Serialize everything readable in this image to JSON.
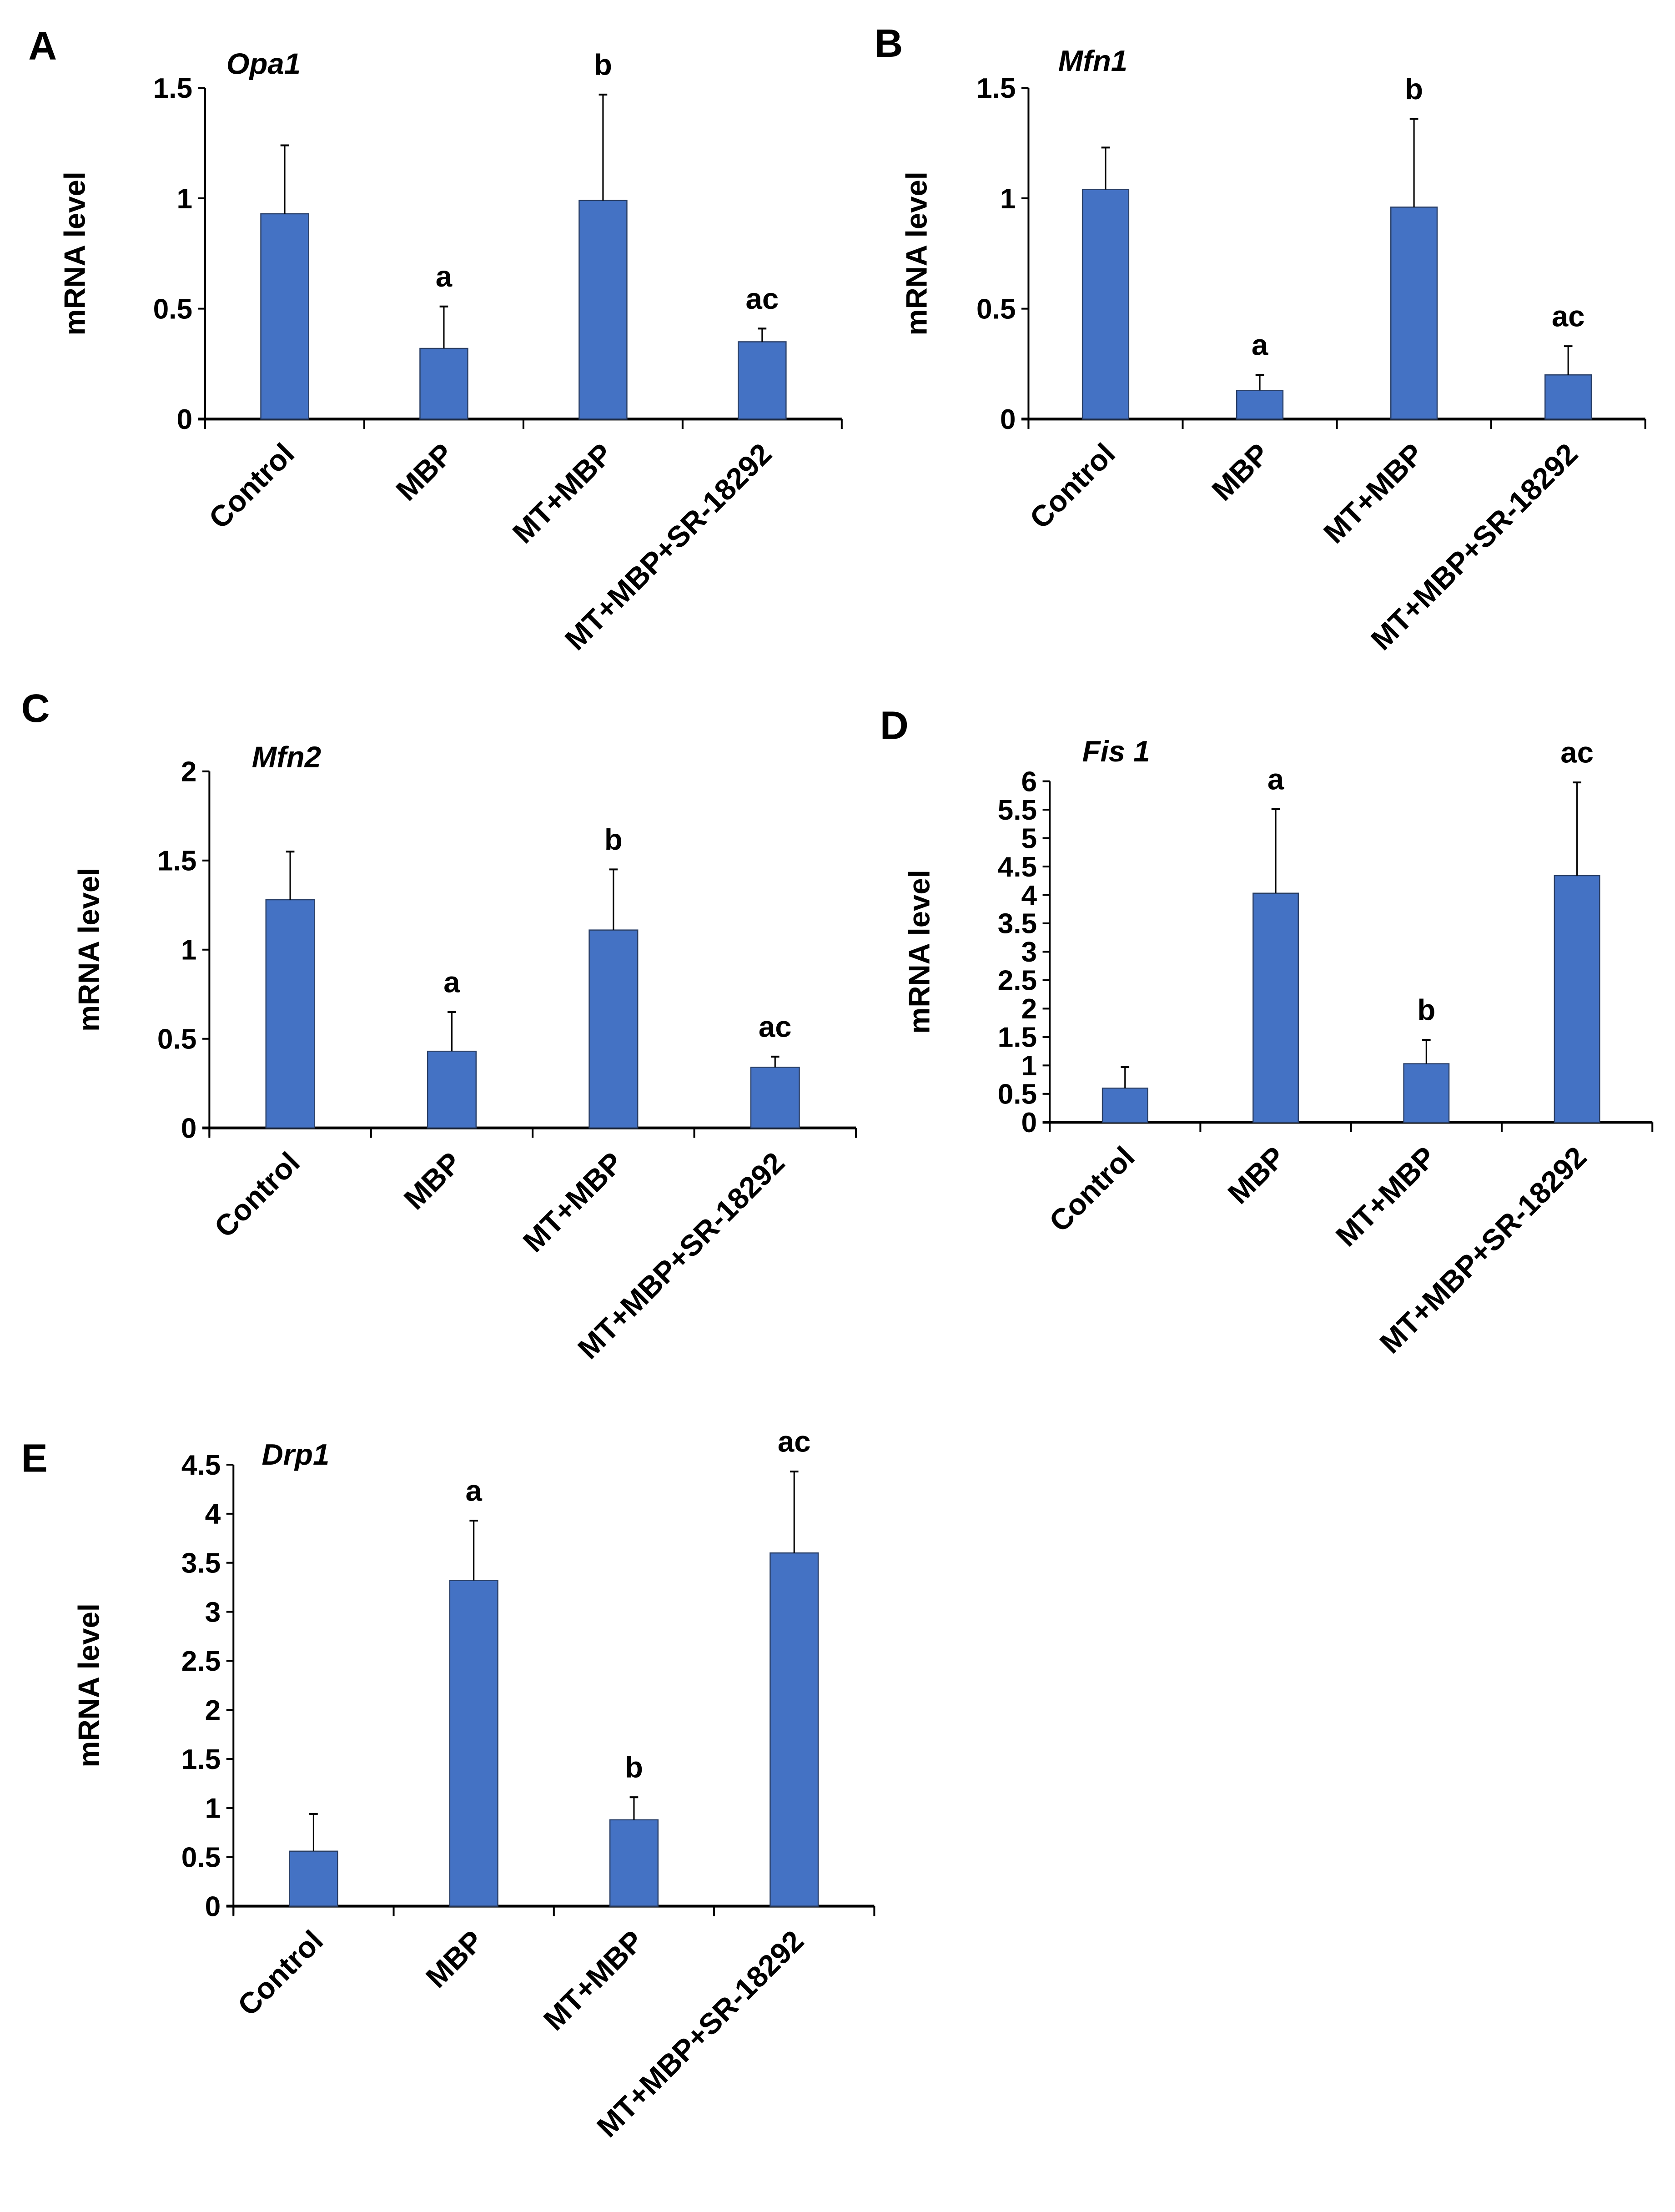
{
  "chart_data": [
    {
      "panel": "A",
      "type": "bar",
      "title": "Opa1",
      "ylabel": "mRNA level",
      "xlabel": "",
      "categories": [
        "Control",
        "MBP",
        "MT+MBP",
        "MT+MBP+SR-18292"
      ],
      "values": [
        0.93,
        0.32,
        0.99,
        0.35
      ],
      "errors": [
        0.31,
        0.19,
        0.48,
        0.06
      ],
      "annotations": [
        "",
        "a",
        "b",
        "ac"
      ],
      "ylim": [
        0,
        1.5
      ],
      "yticks": [
        "0",
        "0.5",
        "1",
        "1.5"
      ],
      "grid": false,
      "color": "#4472C4"
    },
    {
      "panel": "B",
      "type": "bar",
      "title": "Mfn1",
      "ylabel": "mRNA level",
      "xlabel": "",
      "categories": [
        "Control",
        "MBP",
        "MT+MBP",
        "MT+MBP+SR-18292"
      ],
      "values": [
        1.04,
        0.13,
        0.96,
        0.2
      ],
      "errors": [
        0.19,
        0.07,
        0.4,
        0.13
      ],
      "annotations": [
        "",
        "a",
        "b",
        "ac"
      ],
      "ylim": [
        0,
        1.5
      ],
      "yticks": [
        "0",
        "0.5",
        "1",
        "1.5"
      ],
      "grid": false,
      "color": "#4472C4"
    },
    {
      "panel": "C",
      "type": "bar",
      "title": "Mfn2",
      "ylabel": "mRNA level",
      "xlabel": "",
      "categories": [
        "Control",
        "MBP",
        "MT+MBP",
        "MT+MBP+SR-18292"
      ],
      "values": [
        1.28,
        0.43,
        1.11,
        0.34
      ],
      "errors": [
        0.27,
        0.22,
        0.34,
        0.06
      ],
      "annotations": [
        "",
        "a",
        "b",
        "ac"
      ],
      "ylim": [
        0,
        2
      ],
      "yticks": [
        "0",
        "0.5",
        "1",
        "1.5",
        "2"
      ],
      "grid": false,
      "color": "#4472C4"
    },
    {
      "panel": "D",
      "type": "bar",
      "title": "Fis 1",
      "ylabel": "mRNA level",
      "xlabel": "",
      "categories": [
        "Control",
        "MBP",
        "MT+MBP",
        "MT+MBP+SR-18292"
      ],
      "values": [
        0.6,
        4.03,
        1.03,
        4.34
      ],
      "errors": [
        0.37,
        1.48,
        0.42,
        1.64
      ],
      "annotations": [
        "",
        "a",
        "b",
        "ac"
      ],
      "ylim": [
        0,
        6
      ],
      "yticks": [
        "0",
        "0.5",
        "1",
        "1.5",
        "2",
        "2.5",
        "3",
        "3.5",
        "4",
        "4.5",
        "5",
        "5.5",
        "6"
      ],
      "grid": false,
      "color": "#4472C4"
    },
    {
      "panel": "E",
      "type": "bar",
      "title": "Drp1",
      "ylabel": "mRNA level",
      "xlabel": "",
      "categories": [
        "Control",
        "MBP",
        "MT+MBP",
        "MT+MBP+SR-18292"
      ],
      "values": [
        0.56,
        3.32,
        0.88,
        3.6
      ],
      "errors": [
        0.38,
        0.61,
        0.23,
        0.83
      ],
      "annotations": [
        "",
        "a",
        "b",
        "ac"
      ],
      "ylim": [
        0,
        4.5
      ],
      "yticks": [
        "0",
        "0.5",
        "1",
        "1.5",
        "2",
        "2.5",
        "3",
        "3.5",
        "4",
        "4.5"
      ],
      "grid": false,
      "color": "#4472C4"
    }
  ]
}
